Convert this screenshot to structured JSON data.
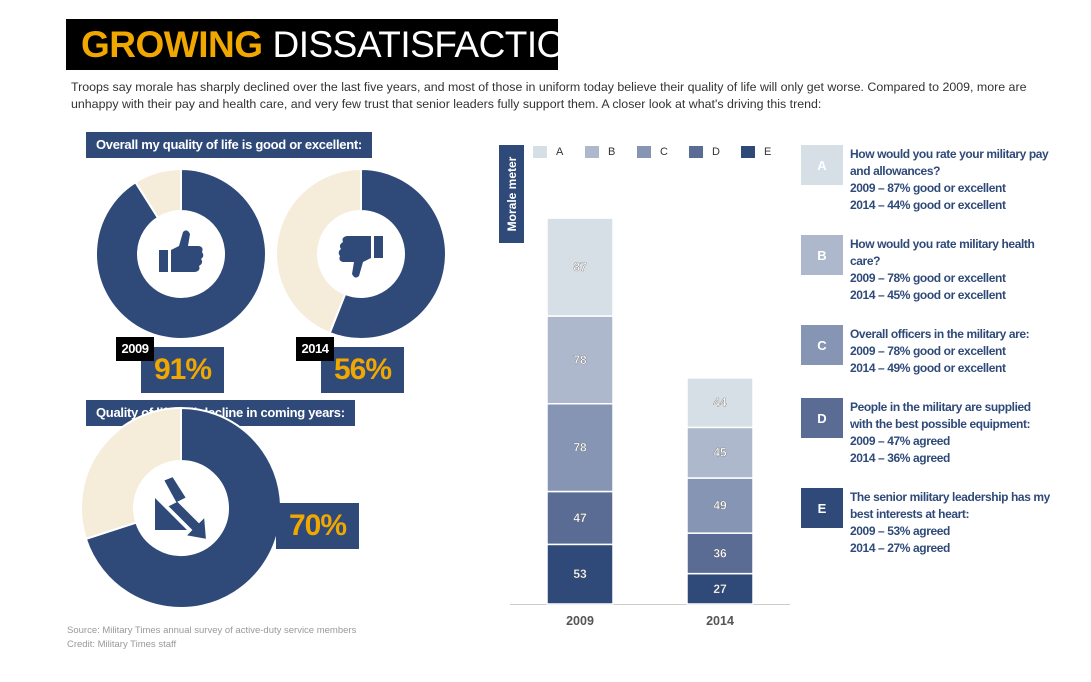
{
  "title": {
    "highlight": "GROWING",
    "rest": "DISSATISFACTION"
  },
  "intro": "Troops say morale has sharply declined over the last five years, and most of those in uniform today believe their quality of life will only get worse. Compared to 2009, more are unhappy with their pay and health care, and very few trust that senior leaders fully support them. A closer look at what's driving this trend:",
  "quality_header": "Overall my quality of life is good or excellent:",
  "decline_header": "Quality of life will decline in coming years:",
  "colors": {
    "navy": "#2f4a79",
    "cream": "#f5ecd9",
    "accent": "#f0a800",
    "A": "#d6dee6",
    "B": "#adb8cc",
    "C": "#8595b3",
    "D": "#5a6c94",
    "E": "#2f4a79"
  },
  "donuts": [
    {
      "year": "2009",
      "value": 91,
      "label": "91%",
      "icon": "thumbs-up-icon"
    },
    {
      "year": "2014",
      "value": 56,
      "label": "56%",
      "icon": "thumbs-down-icon"
    },
    {
      "year": "",
      "value": 70,
      "label": "70%",
      "icon": "decline-arrow-icon"
    }
  ],
  "morale_label": "Morale meter",
  "chart_data": {
    "type": "bar",
    "stacked": true,
    "categories": [
      "2009",
      "2014"
    ],
    "series": [
      {
        "name": "A",
        "values": [
          87,
          44
        ]
      },
      {
        "name": "B",
        "values": [
          78,
          45
        ]
      },
      {
        "name": "C",
        "values": [
          78,
          49
        ]
      },
      {
        "name": "D",
        "values": [
          47,
          36
        ]
      },
      {
        "name": "E",
        "values": [
          53,
          27
        ]
      }
    ],
    "legend_placement": "top",
    "grid": false
  },
  "legend_items": [
    {
      "letter": "A",
      "lines": [
        "How would you rate your military pay",
        "and allowances?",
        "2009 – 87% good or excellent",
        "2014 – 44% good or excellent"
      ]
    },
    {
      "letter": "B",
      "lines": [
        "How would you rate military health",
        "care?",
        "2009 – 78% good or excellent",
        "2014 – 45% good or excellent"
      ]
    },
    {
      "letter": "C",
      "lines": [
        "Overall officers in the military are:",
        "2009 – 78% good or excellent",
        "2014 – 49% good or excellent"
      ]
    },
    {
      "letter": "D",
      "lines": [
        "People in the military are supplied",
        "with the best possible equipment:",
        "2009 – 47% agreed",
        "2014 – 36% agreed"
      ]
    },
    {
      "letter": "E",
      "lines": [
        "The senior military leadership has my",
        "best interests at heart:",
        "2009 – 53% agreed",
        "2014 – 27% agreed"
      ]
    }
  ],
  "source": "Source: Military Times annual survey of active-duty service members",
  "credit": "Credit: Military Times staff"
}
